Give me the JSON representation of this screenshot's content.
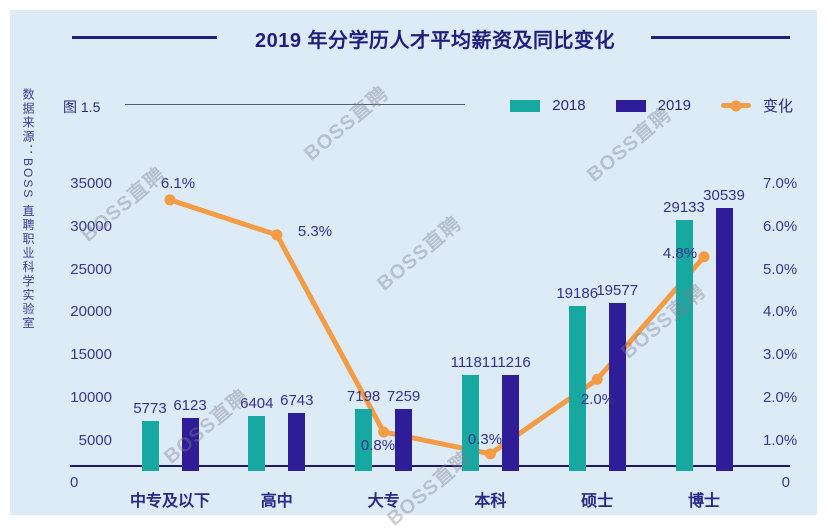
{
  "title": "2019 年分学历人才平均薪资及同比变化",
  "figure_label": "图 1.5",
  "source_note": "数据来源：BOSS 直聘职业科学实验室",
  "watermark_text": "BOSS直聘",
  "legend": [
    {
      "label": "2018",
      "color": "#17a8a2",
      "marker": "square"
    },
    {
      "label": "2019",
      "color": "#2e1d96",
      "marker": "square"
    },
    {
      "label": "变化",
      "color": "#f39b45",
      "marker": "line-dot"
    }
  ],
  "colors": {
    "background": "#dcebf6",
    "frame": "#ffffff",
    "bar_2018": "#17a8a2",
    "bar_2019": "#2e1d96",
    "change_line": "#f39b45",
    "title_text": "#211d7d",
    "axis_text": "#3a3890",
    "axis_line": "#1a186e",
    "watermark": "rgba(125,125,140,0.38)"
  },
  "chart_data": {
    "type": "bar",
    "subtype": "grouped bars with overlay line (dual axis)",
    "categories": [
      "中专及以下",
      "高中",
      "大专",
      "本科",
      "硕士",
      "博士"
    ],
    "series": [
      {
        "name": "2018",
        "type": "bar",
        "axis": "left",
        "values": [
          5773,
          6404,
          7198,
          11181,
          19186,
          29133
        ]
      },
      {
        "name": "2019",
        "type": "bar",
        "axis": "left",
        "values": [
          6123,
          6743,
          7259,
          11216,
          19577,
          30539
        ]
      },
      {
        "name": "变化",
        "type": "line",
        "axis": "right",
        "values_pct": [
          6.1,
          5.3,
          0.8,
          0.3,
          2.0,
          4.8
        ],
        "point_labels": [
          "6.1%",
          "5.3%",
          "0.8%",
          "0.3%",
          "2.0%",
          "4.8%"
        ]
      }
    ],
    "left_axis": {
      "ticks": [
        "35000",
        "30000",
        "25000",
        "20000",
        "15000",
        "10000",
        "5000"
      ],
      "zero_label": "0",
      "min": 0,
      "max": 35000
    },
    "right_axis": {
      "ticks": [
        "7.0%",
        "6.0%",
        "5.0%",
        "4.0%",
        "3.0%",
        "2.0%",
        "1.0%"
      ],
      "zero_label": "0",
      "min": 0,
      "max_pct": 7.0
    },
    "grid": false,
    "legend_position": "top-right"
  }
}
